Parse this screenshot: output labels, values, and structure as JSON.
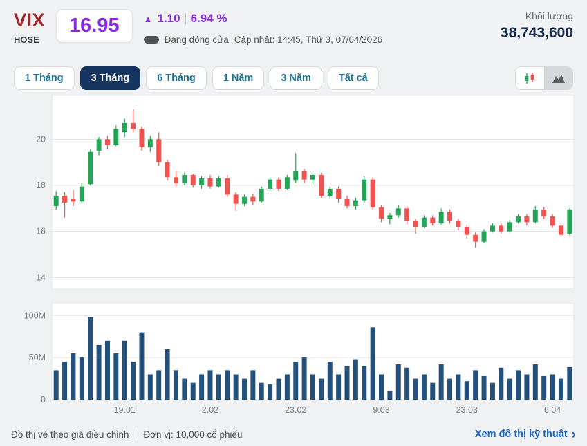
{
  "header": {
    "symbol": "VIX",
    "exchange": "HOSE",
    "price": "16.95",
    "up_arrow": "▲",
    "change": "1.10",
    "change_percent": "6.94 %",
    "market_status": "Đang đóng cửa",
    "updated": "Cập nhật: 14:45, Thứ 3, 07/04/2026",
    "volume_label": "Khối lượng",
    "volume_value": "38,743,600",
    "accent_purple": "#8a2be2",
    "ticker_red": "#9e2426",
    "navy": "#13294b"
  },
  "toolbar": {
    "ranges": [
      "1 Tháng",
      "3 Tháng",
      "6 Tháng",
      "1 Năm",
      "3 Năm",
      "Tất cả"
    ],
    "active_index": 1,
    "chart_type_icons": [
      "candlestick-icon",
      "area-chart-icon"
    ]
  },
  "chart_data": {
    "type": "candlestick+volume-bar",
    "title": "",
    "price_axis": {
      "ticks": [
        14,
        16,
        18,
        20
      ],
      "min": 13.5,
      "max": 21.9
    },
    "volume_axis": {
      "ticks": [
        {
          "label": "0",
          "value": 0
        },
        {
          "label": "50M",
          "value": 50
        },
        {
          "label": "100M",
          "value": 100
        }
      ],
      "max": 115,
      "unit": "millions of shares"
    },
    "x_axis_labels": [
      {
        "label": "19.01",
        "index": 8
      },
      {
        "label": "2.02",
        "index": 18
      },
      {
        "label": "23.02",
        "index": 28
      },
      {
        "label": "9.03",
        "index": 38
      },
      {
        "label": "23.03",
        "index": 48
      },
      {
        "label": "6.04",
        "index": 58
      }
    ],
    "colors": {
      "up": "#26a559",
      "down": "#ef5350",
      "volume": "#24507c",
      "grid": "#e3e5e8",
      "axis_text": "#808080"
    },
    "candles_note": "each entry = [open, high, low, close, volume_in_millions]",
    "candles": [
      [
        17.1,
        17.75,
        16.95,
        17.55,
        35
      ],
      [
        17.55,
        17.7,
        16.6,
        17.25,
        45
      ],
      [
        17.4,
        17.8,
        17.1,
        17.3,
        55
      ],
      [
        17.3,
        18.1,
        17.2,
        17.95,
        50
      ],
      [
        18.05,
        19.55,
        18.0,
        19.45,
        98
      ],
      [
        19.5,
        20.1,
        19.3,
        20.0,
        65
      ],
      [
        20.0,
        20.15,
        19.55,
        19.75,
        70
      ],
      [
        19.75,
        20.6,
        19.7,
        20.45,
        55
      ],
      [
        20.3,
        20.9,
        20.1,
        20.7,
        70
      ],
      [
        20.7,
        21.3,
        20.3,
        20.45,
        45
      ],
      [
        20.45,
        20.55,
        19.5,
        19.65,
        80
      ],
      [
        19.65,
        20.15,
        19.45,
        20.0,
        30
      ],
      [
        20.0,
        20.3,
        18.85,
        19.0,
        35
      ],
      [
        19.0,
        19.1,
        18.2,
        18.35,
        60
      ],
      [
        18.35,
        18.6,
        17.95,
        18.1,
        35
      ],
      [
        18.1,
        18.55,
        18.0,
        18.45,
        25
      ],
      [
        18.45,
        18.5,
        17.9,
        18.0,
        20
      ],
      [
        18.0,
        18.4,
        17.85,
        18.3,
        30
      ],
      [
        18.3,
        18.45,
        17.85,
        17.95,
        35
      ],
      [
        17.95,
        18.4,
        17.9,
        18.3,
        30
      ],
      [
        18.3,
        18.45,
        17.5,
        17.6,
        35
      ],
      [
        17.6,
        17.7,
        16.9,
        17.2,
        30
      ],
      [
        17.2,
        17.6,
        17.1,
        17.5,
        25
      ],
      [
        17.5,
        17.65,
        17.15,
        17.3,
        35
      ],
      [
        17.3,
        17.95,
        17.25,
        17.85,
        20
      ],
      [
        17.85,
        18.35,
        17.75,
        18.25,
        18
      ],
      [
        18.25,
        18.35,
        17.75,
        17.85,
        25
      ],
      [
        17.85,
        18.45,
        17.8,
        18.35,
        30
      ],
      [
        18.2,
        19.4,
        18.1,
        18.6,
        45
      ],
      [
        18.6,
        18.7,
        18.1,
        18.25,
        50
      ],
      [
        18.25,
        18.55,
        18.05,
        18.45,
        30
      ],
      [
        18.45,
        18.55,
        17.45,
        17.55,
        25
      ],
      [
        17.55,
        17.95,
        17.4,
        17.85,
        45
      ],
      [
        17.85,
        17.95,
        17.25,
        17.4,
        30
      ],
      [
        17.4,
        17.55,
        17.0,
        17.1,
        40
      ],
      [
        17.1,
        17.45,
        16.95,
        17.35,
        48
      ],
      [
        17.35,
        18.4,
        17.25,
        18.25,
        40
      ],
      [
        18.25,
        18.35,
        16.95,
        17.05,
        86
      ],
      [
        17.05,
        17.15,
        16.4,
        16.55,
        30
      ],
      [
        16.55,
        16.8,
        16.3,
        16.7,
        10
      ],
      [
        16.7,
        17.15,
        16.6,
        17.0,
        42
      ],
      [
        17.0,
        17.1,
        16.3,
        16.45,
        38
      ],
      [
        16.45,
        16.55,
        15.9,
        16.2,
        25
      ],
      [
        16.2,
        16.7,
        16.15,
        16.6,
        30
      ],
      [
        16.6,
        16.7,
        16.25,
        16.35,
        20
      ],
      [
        16.35,
        17.0,
        16.3,
        16.85,
        42
      ],
      [
        16.85,
        16.95,
        16.35,
        16.45,
        25
      ],
      [
        16.45,
        16.55,
        16.05,
        16.2,
        30
      ],
      [
        16.2,
        16.3,
        15.7,
        15.85,
        22
      ],
      [
        15.85,
        15.95,
        15.3,
        15.55,
        35
      ],
      [
        15.55,
        16.1,
        15.5,
        16.0,
        28
      ],
      [
        16.0,
        16.35,
        15.95,
        16.25,
        20
      ],
      [
        16.25,
        16.35,
        15.9,
        16.0,
        38
      ],
      [
        16.0,
        16.5,
        15.95,
        16.4,
        25
      ],
      [
        16.4,
        16.75,
        16.35,
        16.65,
        35
      ],
      [
        16.65,
        16.75,
        16.25,
        16.4,
        30
      ],
      [
        16.4,
        17.1,
        16.35,
        16.95,
        42
      ],
      [
        16.95,
        17.05,
        16.55,
        16.65,
        28
      ],
      [
        16.65,
        16.75,
        16.15,
        16.25,
        30
      ],
      [
        16.25,
        16.35,
        15.8,
        15.85,
        25
      ],
      [
        15.9,
        17.0,
        15.85,
        16.95,
        38.74
      ]
    ]
  },
  "footer": {
    "note_adjusted": "Đồ thị vẽ theo giá điều chỉnh",
    "note_unit": "Đơn vị: 10,000 cổ phiếu",
    "link_label": "Xem đồ thị kỹ thuật",
    "link_chevron": "›"
  }
}
